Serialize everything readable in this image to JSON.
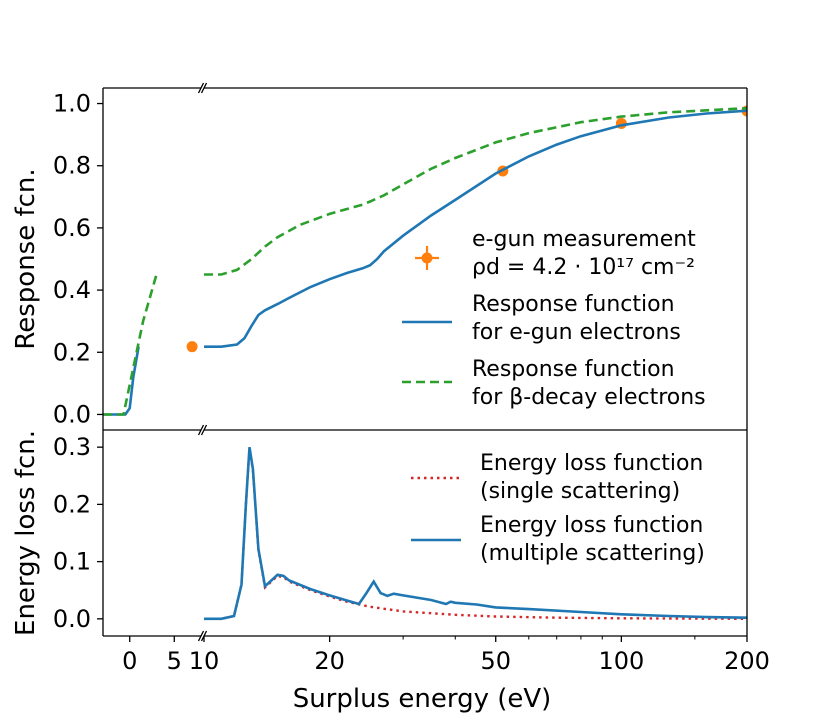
{
  "chart_data": [
    {
      "type": "line",
      "panel": "top",
      "ylabel": "Response fcn.",
      "ylim": [
        -0.05,
        1.05
      ],
      "yticks": [
        "0.0",
        "0.2",
        "0.4",
        "0.6",
        "0.8",
        "1.0"
      ],
      "grid": false,
      "legend_position": "right",
      "series": [
        {
          "name_lines": [
            "e-gun measurement",
            "ρd = 4.2 · 10¹⁷ cm⁻²"
          ],
          "kind": "errorbar",
          "color": "#ff7f0e",
          "points": [
            [
              7,
              0.218
            ],
            [
              52,
              0.783
            ],
            [
              100,
              0.936
            ],
            [
              200,
              0.976
            ]
          ]
        },
        {
          "name_lines": [
            "Response function",
            "for e-gun electrons"
          ],
          "kind": "solid",
          "color": "#1f77b4",
          "points": [
            [
              -3,
              0.0
            ],
            [
              -0.5,
              0.0
            ],
            [
              0,
              0.02
            ],
            [
              0.4,
              0.12
            ],
            [
              1,
              0.218
            ],
            [
              10,
              0.218
            ],
            [
              11,
              0.218
            ],
            [
              12,
              0.225
            ],
            [
              12.5,
              0.245
            ],
            [
              13,
              0.285
            ],
            [
              13.5,
              0.32
            ],
            [
              14,
              0.335
            ],
            [
              15,
              0.355
            ],
            [
              16,
              0.375
            ],
            [
              18,
              0.41
            ],
            [
              20,
              0.435
            ],
            [
              22,
              0.455
            ],
            [
              24,
              0.47
            ],
            [
              25,
              0.48
            ],
            [
              26,
              0.5
            ],
            [
              27,
              0.525
            ],
            [
              30,
              0.575
            ],
            [
              35,
              0.64
            ],
            [
              40,
              0.69
            ],
            [
              50,
              0.775
            ],
            [
              60,
              0.83
            ],
            [
              70,
              0.868
            ],
            [
              80,
              0.895
            ],
            [
              100,
              0.93
            ],
            [
              130,
              0.955
            ],
            [
              160,
              0.968
            ],
            [
              200,
              0.977
            ]
          ]
        },
        {
          "name_lines": [
            "Response function",
            "for β-decay electrons"
          ],
          "kind": "dashed",
          "color": "#2ca02c",
          "points": [
            [
              -3,
              0.0
            ],
            [
              -0.7,
              0.0
            ],
            [
              1.5,
              0.3
            ],
            [
              3,
              0.45
            ],
            [
              10,
              0.45
            ],
            [
              11,
              0.45
            ],
            [
              12,
              0.465
            ],
            [
              13,
              0.5
            ],
            [
              14,
              0.54
            ],
            [
              15,
              0.57
            ],
            [
              17,
              0.61
            ],
            [
              20,
              0.645
            ],
            [
              24,
              0.675
            ],
            [
              25,
              0.685
            ],
            [
              27,
              0.705
            ],
            [
              30,
              0.74
            ],
            [
              35,
              0.79
            ],
            [
              40,
              0.825
            ],
            [
              50,
              0.875
            ],
            [
              60,
              0.905
            ],
            [
              80,
              0.94
            ],
            [
              100,
              0.958
            ],
            [
              130,
              0.972
            ],
            [
              200,
              0.985
            ]
          ]
        }
      ]
    },
    {
      "type": "line",
      "panel": "bottom",
      "xlabel": "Surplus energy (eV)",
      "ylabel": "Energy loss fcn.",
      "ylim": [
        -0.03,
        0.33
      ],
      "yticks": [
        "0.0",
        "0.1",
        "0.2",
        "0.3"
      ],
      "xticks": [
        "0",
        "5",
        "10",
        "20",
        "50",
        "100",
        "200"
      ],
      "x_axis_note": "broken axis: linear from -3 to 8 eV, logarithmic from 10 to 200 eV",
      "grid": false,
      "legend_position": "top-right",
      "series": [
        {
          "name_lines": [
            "Energy loss function",
            "(single scattering)"
          ],
          "kind": "dotted",
          "color": "#d62728",
          "points": [
            [
              -3,
              0.0
            ],
            [
              10,
              0.0
            ],
            [
              11,
              0.0
            ],
            [
              11.8,
              0.005
            ],
            [
              12.3,
              0.06
            ],
            [
              12.6,
              0.2
            ],
            [
              12.85,
              0.298
            ],
            [
              13.1,
              0.26
            ],
            [
              13.5,
              0.12
            ],
            [
              14,
              0.055
            ],
            [
              14.5,
              0.065
            ],
            [
              15,
              0.075
            ],
            [
              15.5,
              0.073
            ],
            [
              16,
              0.065
            ],
            [
              18,
              0.05
            ],
            [
              20,
              0.039
            ],
            [
              22,
              0.03
            ],
            [
              25,
              0.021
            ],
            [
              30,
              0.013
            ],
            [
              40,
              0.007
            ],
            [
              50,
              0.004
            ],
            [
              70,
              0.002
            ],
            [
              100,
              0.001
            ],
            [
              200,
              0.0
            ]
          ]
        },
        {
          "name_lines": [
            "Energy loss function",
            "(multiple scattering)"
          ],
          "kind": "solid",
          "color": "#1f77b4",
          "points": [
            [
              -3,
              0.0
            ],
            [
              10,
              0.0
            ],
            [
              11,
              0.0
            ],
            [
              11.8,
              0.005
            ],
            [
              12.3,
              0.06
            ],
            [
              12.6,
              0.2
            ],
            [
              12.85,
              0.3
            ],
            [
              13.1,
              0.262
            ],
            [
              13.5,
              0.122
            ],
            [
              14,
              0.057
            ],
            [
              14.5,
              0.067
            ],
            [
              15,
              0.077
            ],
            [
              15.5,
              0.075
            ],
            [
              16,
              0.067
            ],
            [
              18,
              0.052
            ],
            [
              20,
              0.041
            ],
            [
              22,
              0.032
            ],
            [
              23.5,
              0.026
            ],
            [
              24.5,
              0.045
            ],
            [
              25.5,
              0.065
            ],
            [
              26.5,
              0.045
            ],
            [
              27.5,
              0.04
            ],
            [
              28.5,
              0.044
            ],
            [
              30,
              0.041
            ],
            [
              35,
              0.033
            ],
            [
              38,
              0.026
            ],
            [
              39,
              0.03
            ],
            [
              40,
              0.028
            ],
            [
              45,
              0.025
            ],
            [
              50,
              0.02
            ],
            [
              60,
              0.017
            ],
            [
              80,
              0.012
            ],
            [
              100,
              0.008
            ],
            [
              130,
              0.005
            ],
            [
              160,
              0.003
            ],
            [
              200,
              0.002
            ]
          ]
        }
      ]
    }
  ]
}
